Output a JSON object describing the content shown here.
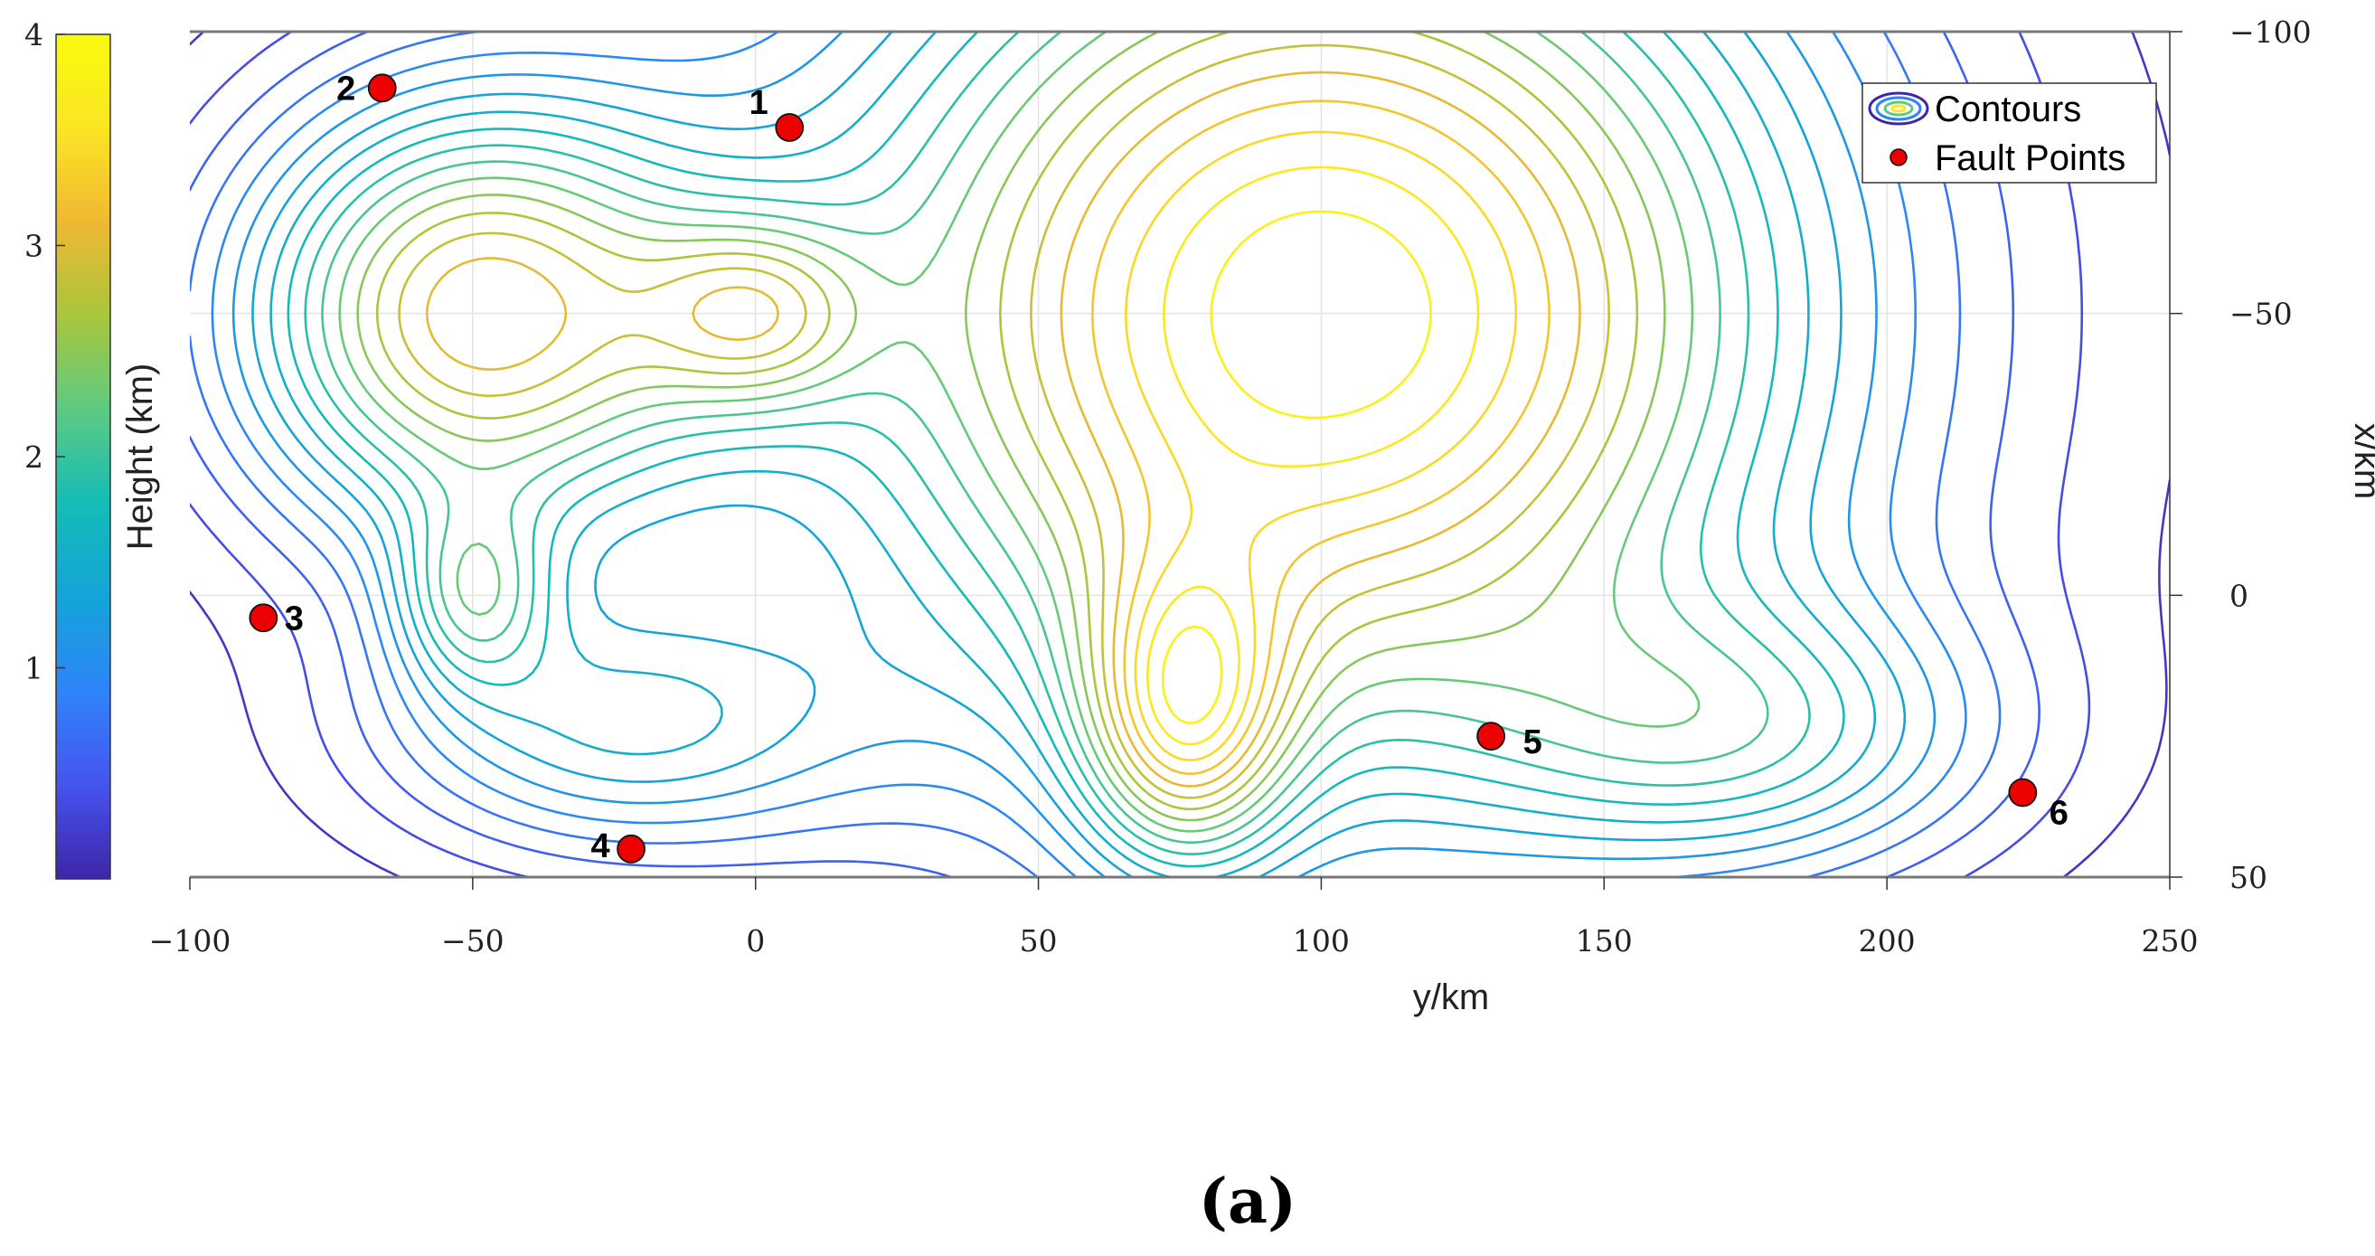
{
  "chart_data": {
    "type": "contour",
    "xlabel": "y/km",
    "ylabel": "x/km",
    "xlim": [
      -100,
      250
    ],
    "ylim": [
      -100,
      50
    ],
    "y_axis_reversed": true,
    "y_axis_position": "right",
    "x_ticks": [
      -100,
      -50,
      0,
      50,
      100,
      150,
      200,
      250
    ],
    "y_ticks": [
      -100,
      -50,
      0,
      50
    ],
    "grid": true,
    "colorbar": {
      "label": "Height (km)",
      "range": [
        0,
        4
      ],
      "ticks": [
        1,
        2,
        3,
        4
      ],
      "colormap": [
        "#3d26a8",
        "#4653ee",
        "#2f84f9",
        "#14a4d8",
        "#14bcb6",
        "#5dca83",
        "#a9c63c",
        "#f0b833",
        "#fbe523",
        "#f9fb0e"
      ],
      "position": "left"
    },
    "contour_levels": 20,
    "peaks": [
      {
        "y": -50,
        "x": -50,
        "height": 3.0
      },
      {
        "y": 0,
        "x": -50,
        "height": 1.3
      },
      {
        "y": 100,
        "x": -50,
        "height": 4.0
      },
      {
        "y": -50,
        "x": 0,
        "height": 1.3
      },
      {
        "y": -25,
        "x": 24,
        "height": 1.3
      },
      {
        "y": 76,
        "x": 22,
        "height": 2.1
      },
      {
        "y": 175,
        "x": 25,
        "height": 1.3
      }
    ],
    "fault_points": [
      {
        "label": "1",
        "y": 6,
        "x": -83
      },
      {
        "label": "2",
        "y": -66,
        "x": -90
      },
      {
        "label": "3",
        "y": -87,
        "x": 4
      },
      {
        "label": "4",
        "y": -22,
        "x": 45
      },
      {
        "label": "5",
        "y": 130,
        "x": 25
      },
      {
        "label": "6",
        "y": 224,
        "x": 35
      }
    ],
    "legend": {
      "position": "top-right",
      "entries": [
        "Contours",
        "Fault Points"
      ]
    }
  },
  "caption": "(a)"
}
